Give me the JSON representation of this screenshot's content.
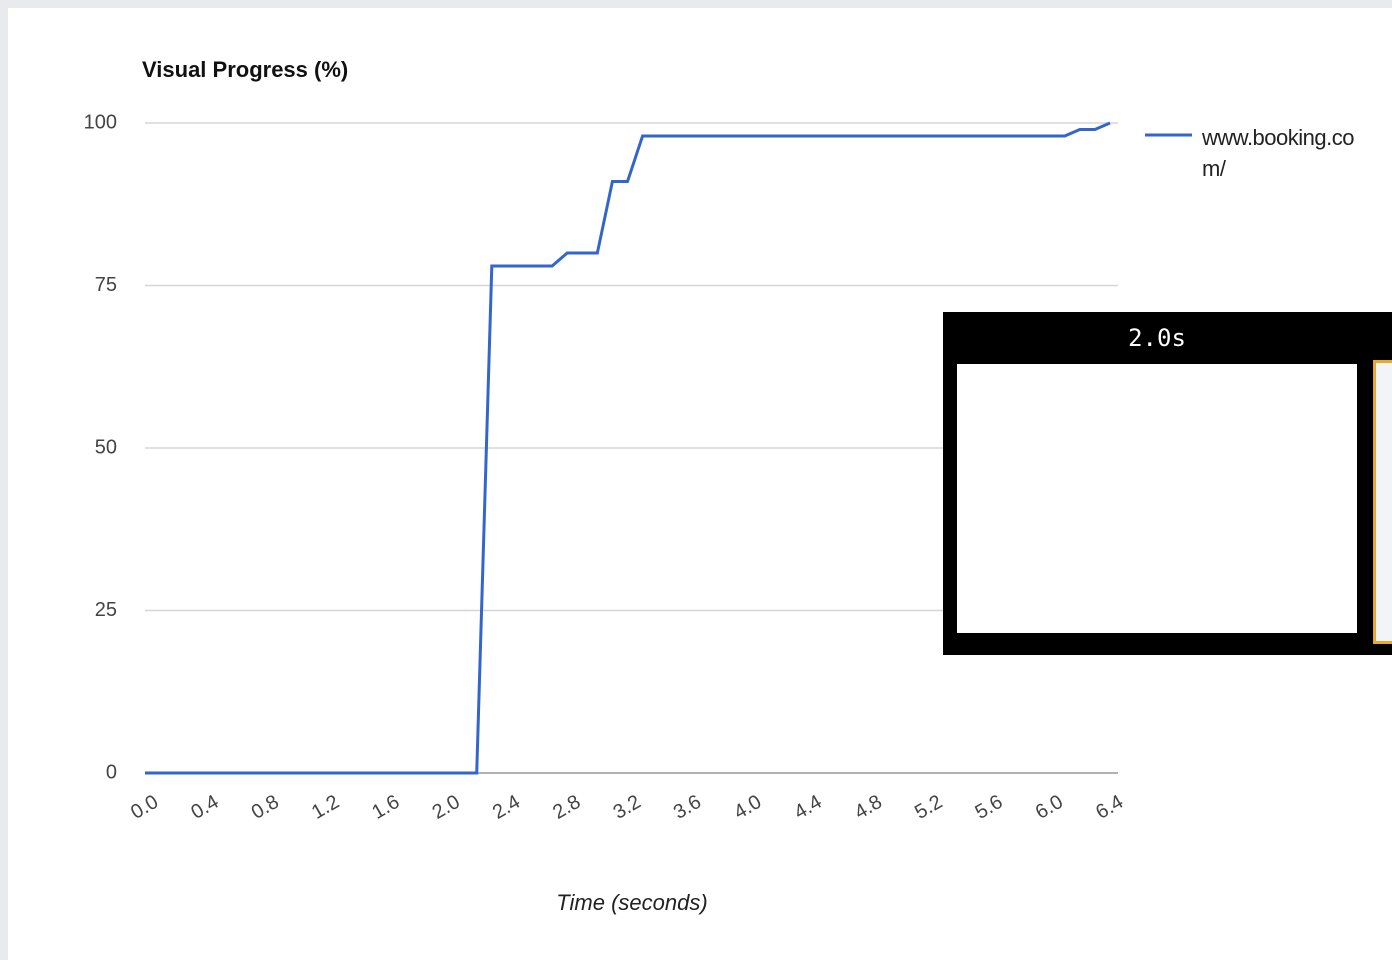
{
  "chart_data": {
    "type": "line",
    "title": "Visual Progress (%)",
    "x_label": "Time (seconds)",
    "x": [
      0.0,
      2.2,
      2.3,
      2.7,
      2.8,
      3.0,
      3.1,
      3.2,
      3.3,
      6.1,
      6.2,
      6.3,
      6.4
    ],
    "series": [
      {
        "name": "www.booking.com/",
        "color": "#3366cc",
        "values": [
          0,
          0,
          78,
          78,
          80,
          80,
          91,
          91,
          98,
          98,
          99,
          99,
          100
        ]
      }
    ],
    "xlim": [
      0,
      6.4
    ],
    "xticks": [
      {
        "value": 0,
        "label": "0.0"
      },
      {
        "value": 0.4,
        "label": "0.4"
      },
      {
        "value": 0.8,
        "label": "0.8"
      },
      {
        "value": 1.2,
        "label": "1.2"
      },
      {
        "value": 1.6,
        "label": "1.6"
      },
      {
        "value": 2,
        "label": "2.0"
      },
      {
        "value": 2.4,
        "label": "2.4"
      },
      {
        "value": 2.8,
        "label": "2.8"
      },
      {
        "value": 3.2,
        "label": "3.2"
      },
      {
        "value": 3.6,
        "label": "3.6"
      },
      {
        "value": 4,
        "label": "4.0"
      },
      {
        "value": 4.4,
        "label": "4.4"
      },
      {
        "value": 4.8,
        "label": "4.8"
      },
      {
        "value": 5.2,
        "label": "5.2"
      },
      {
        "value": 5.6,
        "label": "5.6"
      },
      {
        "value": 6,
        "label": "6.0"
      },
      {
        "value": 6.4,
        "label": "6.4"
      }
    ],
    "ylim": [
      0,
      100
    ],
    "yticks": [
      0,
      25,
      50,
      75,
      100
    ],
    "grid": true,
    "legend": "right",
    "overlay": {
      "label": "2.0s"
    }
  }
}
